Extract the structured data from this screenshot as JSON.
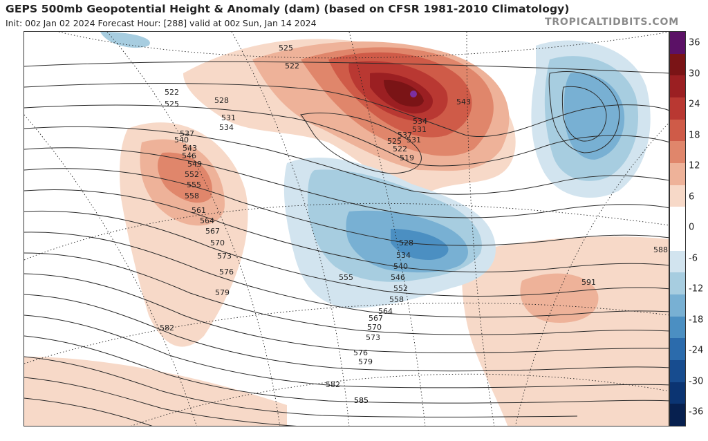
{
  "header": {
    "title": "GEPS 500mb Geopotential Height & Anomaly (dam) (based on CFSR 1981-2010 Climatology)",
    "subtitle": "Init: 00z Jan 02 2024   Forecast Hour: [288]   valid at 00z Sun, Jan 14 2024",
    "brand": "TROPICALTIDBITS.COM"
  },
  "colorbar": {
    "ticks": [
      "36",
      "30",
      "24",
      "18",
      "12",
      "6",
      "0",
      "-6",
      "-12",
      "-18",
      "-24",
      "-30",
      "-36"
    ],
    "colors": [
      "#5b1166",
      "#7a1416",
      "#9b1f22",
      "#b93832",
      "#cf5b48",
      "#e0866b",
      "#eeb299",
      "#f7d9c8",
      "#ffffff",
      "#ffffff",
      "#d2e4ef",
      "#a7cde0",
      "#78b0d3",
      "#4b8fc2",
      "#2b6bac",
      "#174c8f",
      "#0b3472",
      "#07204f"
    ]
  },
  "contours": {
    "labels": [
      "522",
      "525",
      "528",
      "531",
      "534",
      "537",
      "540",
      "543",
      "546",
      "549",
      "552",
      "555",
      "558",
      "561",
      "564",
      "567",
      "570",
      "573",
      "576",
      "579",
      "582",
      "585",
      "588",
      "591",
      "522",
      "525",
      "531",
      "534",
      "537",
      "543",
      "519",
      "522",
      "525",
      "528",
      "531",
      "534",
      "540",
      "546",
      "552",
      "555",
      "558",
      "564",
      "567",
      "570",
      "573",
      "576",
      "579",
      "582",
      "585"
    ]
  }
}
